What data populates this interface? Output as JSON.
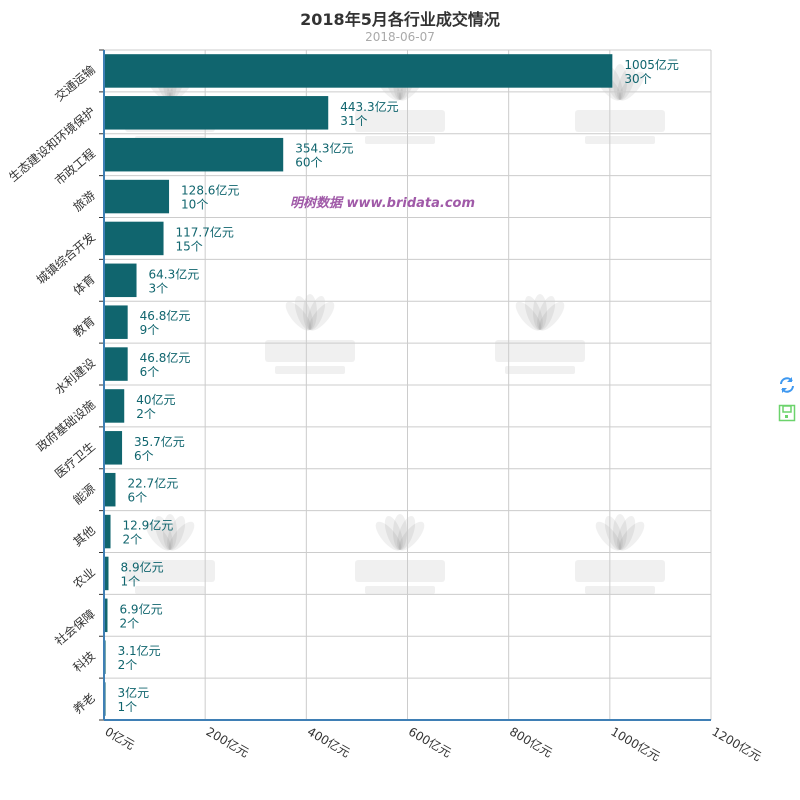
{
  "chart_data": {
    "type": "bar",
    "orientation": "horizontal",
    "title": "2018年5月各行业成交情况",
    "subtitle": "2018-06-07",
    "categories": [
      "交通运输",
      "生态建设和环境保护",
      "市政工程",
      "旅游",
      "城镇综合开发",
      "体育",
      "教育",
      "水利建设",
      "政府基础设施",
      "医疗卫生",
      "能源",
      "其他",
      "农业",
      "社会保障",
      "科技",
      "养老"
    ],
    "values": [
      1005,
      443.3,
      354.3,
      128.6,
      117.7,
      64.3,
      46.8,
      46.8,
      40,
      35.7,
      22.7,
      12.9,
      8.9,
      6.9,
      3.1,
      3
    ],
    "counts": [
      30,
      31,
      60,
      10,
      15,
      3,
      9,
      6,
      2,
      6,
      6,
      2,
      1,
      2,
      2,
      1
    ],
    "value_unit": "亿元",
    "count_unit": "个",
    "xlim": [
      0,
      1200
    ],
    "xticks": [
      "0亿元",
      "200亿元",
      "400亿元",
      "600亿元",
      "800亿元",
      "1000亿元",
      "1200亿元"
    ],
    "grid": true,
    "colors": {
      "bar": "#10656e",
      "label": "#10656e",
      "axis": "#3f7fb5",
      "grid": "#cccccc"
    }
  },
  "watermark": {
    "logo_text": "BRIdata",
    "logo_sub": "明树数据",
    "overlay": "明树数据 www.bridata.com"
  },
  "toolbox": {
    "restore_icon": "refresh-icon",
    "save_icon": "save-image-icon",
    "restore_color": "#3e98f0",
    "save_color": "#6cd36c"
  }
}
